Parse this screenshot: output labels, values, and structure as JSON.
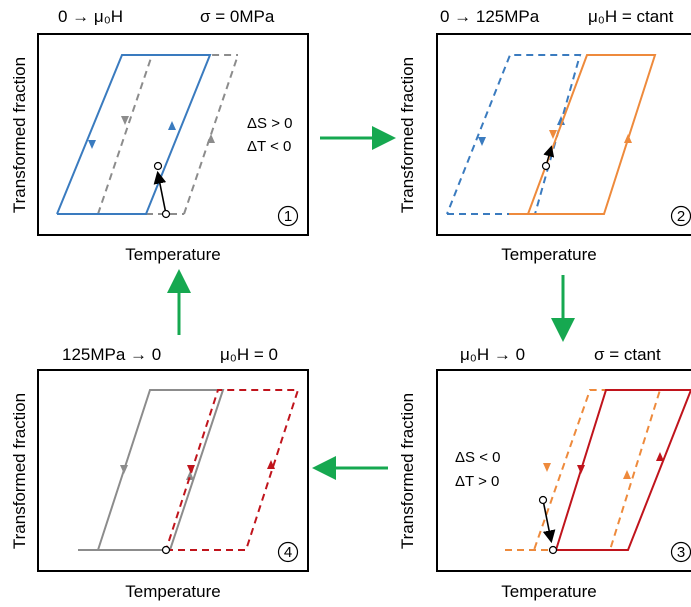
{
  "panels": [
    {
      "number": "1",
      "header_left": "0 → μ₀H",
      "header_right": "σ = 0MPa",
      "ylabel": "Transformed fraction",
      "xlabel": "Temperature",
      "annotation": [
        "ΔS > 0",
        "ΔT < 0"
      ]
    },
    {
      "number": "2",
      "header_left": "0 → 125MPa",
      "header_right": "μ₀H = ctant",
      "ylabel": "Transformed fraction",
      "xlabel": "Temperature",
      "annotation": []
    },
    {
      "number": "3",
      "header_left": "μ₀H → 0",
      "header_right": "σ = ctant",
      "ylabel": "Transformed fraction",
      "xlabel": "Temperature",
      "annotation": [
        "ΔS < 0",
        "ΔT > 0"
      ]
    },
    {
      "number": "4",
      "header_left": "125MPa → 0",
      "header_right": "μ₀H = 0",
      "ylabel": "Transformed fraction",
      "xlabel": "Temperature",
      "annotation": []
    }
  ],
  "colors": {
    "blue": "#3a7bbf",
    "orange": "#ee8a3c",
    "red": "#c0141c",
    "gray": "#8c8c8c",
    "arrow_green": "#16a850"
  }
}
